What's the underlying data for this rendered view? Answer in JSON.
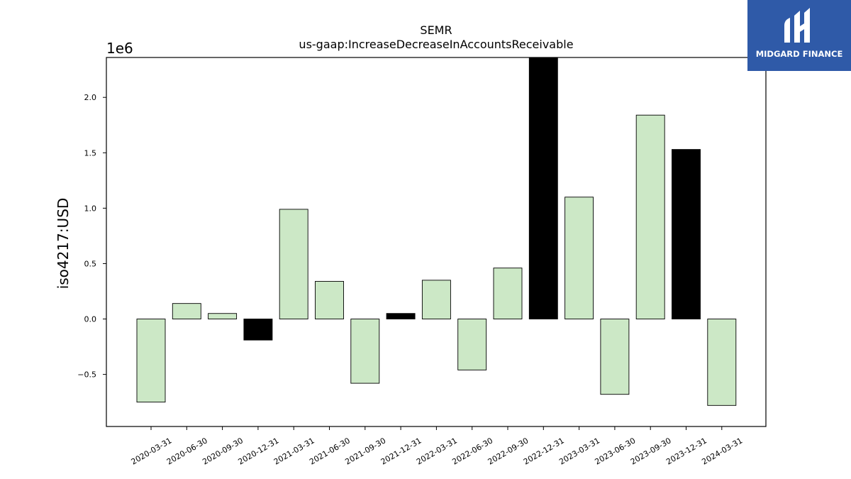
{
  "chart_data": {
    "type": "bar",
    "title": "SEMR",
    "subtitle": "us-gaap:IncreaseDecreaseInAccountsReceivable",
    "ylabel": "iso4217:USD",
    "xlabel": "",
    "y_offset_label": "1e6",
    "ylim": [
      -0.97,
      2.36
    ],
    "yticks": [
      -0.5,
      0.0,
      0.5,
      1.0,
      1.5,
      2.0
    ],
    "ytick_labels": [
      "−0.5",
      "0.0",
      "0.5",
      "1.0",
      "1.5",
      "2.0"
    ],
    "categories": [
      "2020-03-31",
      "2020-06-30",
      "2020-09-30",
      "2020-12-31",
      "2021-03-31",
      "2021-06-30",
      "2021-09-30",
      "2021-12-31",
      "2022-03-31",
      "2022-06-30",
      "2022-09-30",
      "2022-12-31",
      "2023-03-31",
      "2023-06-30",
      "2023-09-30",
      "2023-12-31",
      "2024-03-31"
    ],
    "values": [
      -0.75,
      0.14,
      0.05,
      -0.19,
      0.99,
      0.34,
      -0.58,
      0.05,
      0.35,
      -0.46,
      0.46,
      2.36,
      1.1,
      -0.68,
      1.84,
      1.53,
      -0.78
    ],
    "highlight": [
      false,
      false,
      false,
      true,
      false,
      false,
      false,
      true,
      false,
      false,
      false,
      true,
      false,
      false,
      false,
      true,
      false
    ],
    "colors": {
      "bar": "#cce8c6",
      "highlight": "#000000",
      "edge": "#000000"
    },
    "grid": false,
    "legend": "none"
  },
  "logo": {
    "text": "MIDGARD FINANCE",
    "background": "#2f5aa8"
  }
}
